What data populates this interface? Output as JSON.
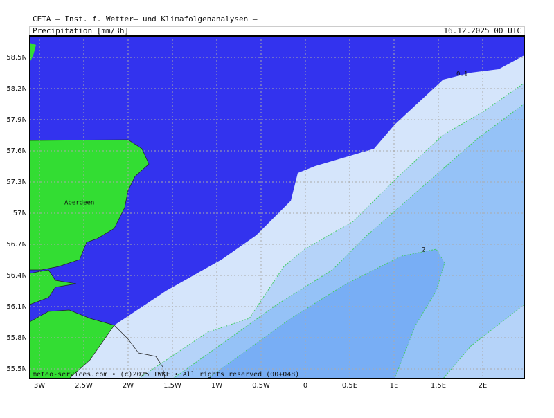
{
  "header": {
    "institute": "CETA — Inst. f. Wetter— und Klimafolgenanalysen —",
    "field": "Precipitation [mm/3h]",
    "valid_time": "16.12.2025 00 UTC"
  },
  "map": {
    "lat_labels": [
      "58.5N",
      "58.2N",
      "57.9N",
      "57.6N",
      "57.3N",
      "57N",
      "56.7N",
      "56.4N",
      "56.1N",
      "55.8N",
      "55.5N"
    ],
    "lon_labels": [
      "3W",
      "2.5W",
      "2W",
      "1.5W",
      "1W",
      "0.5W",
      "0",
      "0.5E",
      "1E",
      "1.5E",
      "2E"
    ],
    "place_labels": [
      "Aberdeen"
    ],
    "contour_labels": [
      "0.1",
      "2"
    ],
    "footer": "meteo-services.com • (c)2025 IWKF • All rights reserved (00+048)"
  }
}
